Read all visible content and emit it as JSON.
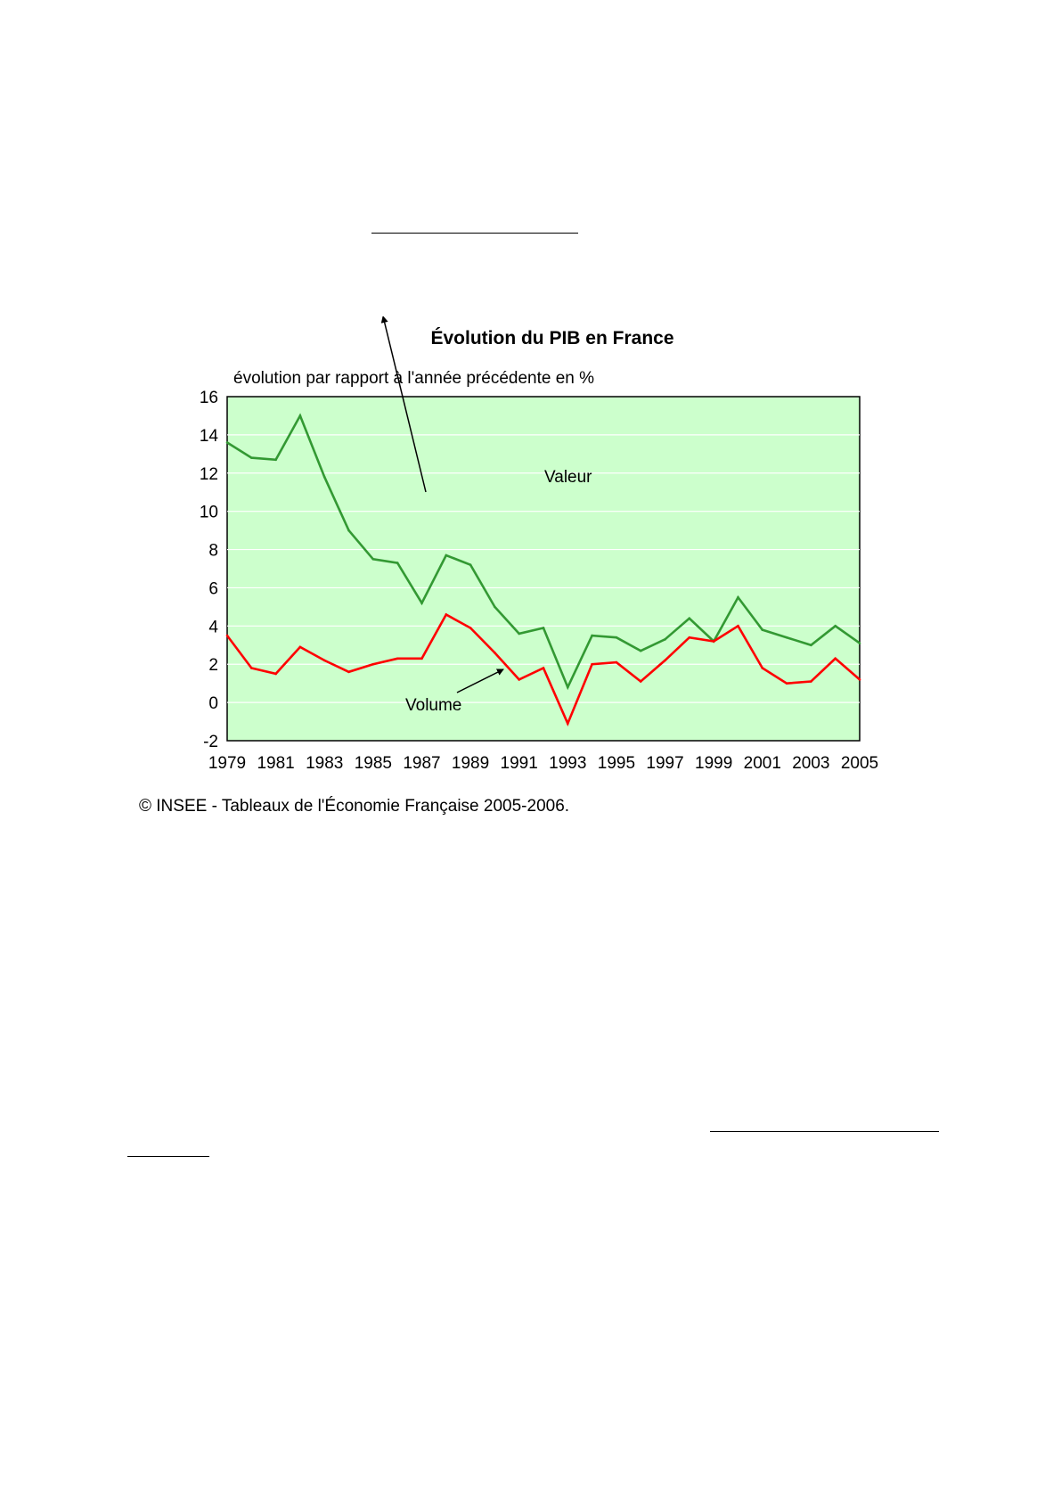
{
  "chart_data": {
    "type": "line",
    "title": "Évolution du PIB en France",
    "subtitle": "évolution par rapport à l'année précédente en %",
    "xlabel": "",
    "ylabel": "",
    "source": "© INSEE - Tableaux de l'Économie Française 2005-2006.",
    "x": [
      1979,
      1980,
      1981,
      1982,
      1983,
      1984,
      1985,
      1986,
      1987,
      1988,
      1989,
      1990,
      1991,
      1992,
      1993,
      1994,
      1995,
      1996,
      1997,
      1998,
      1999,
      2000,
      2001,
      2002,
      2003,
      2004,
      2005
    ],
    "x_tick_labels": [
      "1979",
      "1981",
      "1983",
      "1985",
      "1987",
      "1989",
      "1991",
      "1993",
      "1995",
      "1997",
      "1999",
      "2001",
      "2003",
      "2005"
    ],
    "y_tick_labels": [
      "16",
      "14",
      "12",
      "10",
      "8",
      "6",
      "4",
      "2",
      "0",
      "-2"
    ],
    "ylim": [
      -2,
      16
    ],
    "grid": true,
    "plot_background": "#ccffcc",
    "series": [
      {
        "name": "Valeur",
        "color": "#339933",
        "values": [
          13.6,
          12.8,
          12.7,
          15.0,
          11.8,
          9.0,
          7.5,
          7.3,
          5.2,
          7.7,
          7.2,
          5.0,
          3.6,
          3.9,
          0.8,
          3.5,
          3.4,
          2.7,
          3.3,
          4.4,
          3.2,
          5.5,
          3.8,
          3.4,
          3.0,
          4.0,
          3.1
        ]
      },
      {
        "name": "Volume",
        "color": "#ff0000",
        "values": [
          3.5,
          1.8,
          1.5,
          2.9,
          2.2,
          1.6,
          2.0,
          2.3,
          2.3,
          4.6,
          3.9,
          2.6,
          1.2,
          1.8,
          -1.1,
          2.0,
          2.1,
          1.1,
          2.2,
          3.4,
          3.2,
          4.0,
          1.8,
          1.0,
          1.1,
          2.3,
          1.2
        ]
      }
    ]
  }
}
